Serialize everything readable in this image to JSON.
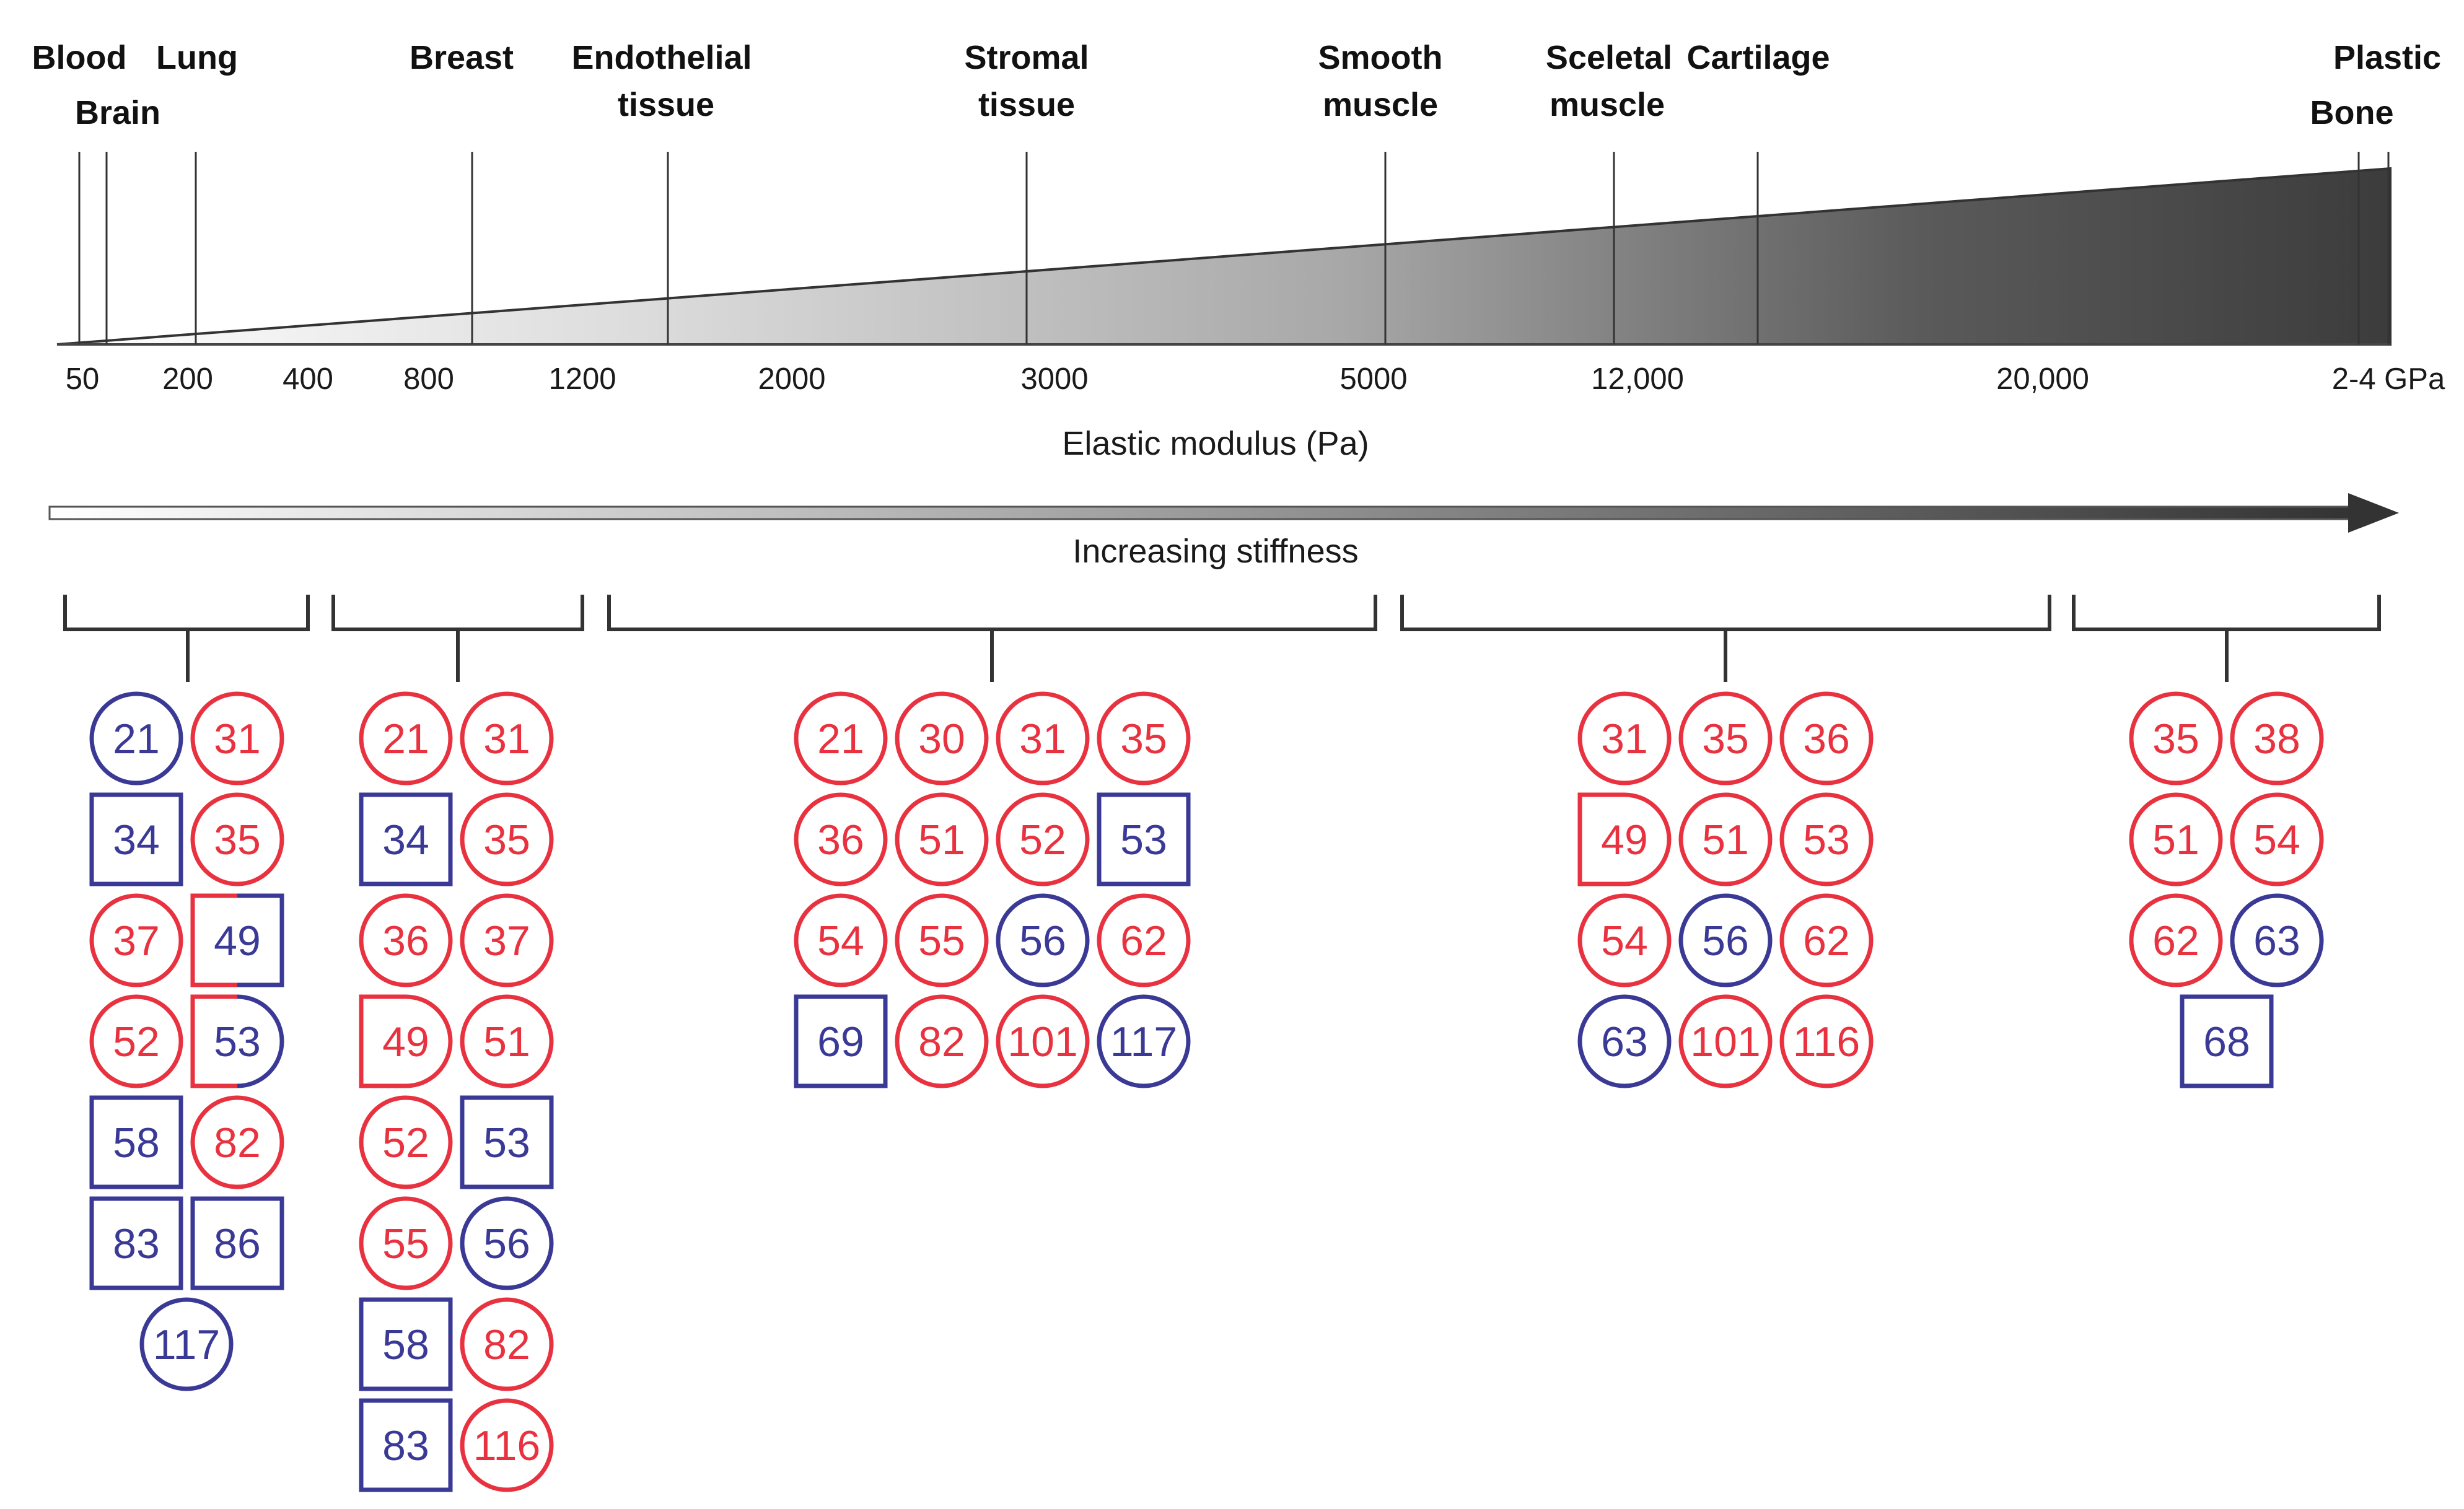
{
  "colors": {
    "red": "#e8323f",
    "blue": "#3a3a96",
    "line": "#333333",
    "wedge_dark": "#3c3c3c",
    "wedge_light": "#ffffff"
  },
  "tissue_labels": [
    {
      "text": "Blood"
    },
    {
      "text": "Brain"
    },
    {
      "text": "Lung"
    },
    {
      "text": "Breast"
    },
    {
      "text": "Endothelial"
    },
    {
      "text": "tissue"
    },
    {
      "text": "Stromal"
    },
    {
      "text": "tissue"
    },
    {
      "text": "Smooth"
    },
    {
      "text": "muscle"
    },
    {
      "text": "Sceletal"
    },
    {
      "text": "muscle"
    },
    {
      "text": "Cartilage"
    },
    {
      "text": "Plastic"
    },
    {
      "text": "Bone"
    }
  ],
  "axis": {
    "ticks": [
      "50",
      "200",
      "400",
      "800",
      "1200",
      "2000",
      "3000",
      "5000",
      "12,000",
      "20,000",
      "2-4 GPa"
    ],
    "title": "Elastic modulus (Pa)",
    "arrow_label": "Increasing stiffness"
  },
  "groups": [
    {
      "name": "group-very-soft",
      "refs": [
        {
          "n": "21",
          "shape": "circle",
          "color": "blue"
        },
        {
          "n": "31",
          "shape": "circle",
          "color": "red"
        },
        {
          "n": "34",
          "shape": "square",
          "color": "blue"
        },
        {
          "n": "35",
          "shape": "circle",
          "color": "red"
        },
        {
          "n": "37",
          "shape": "circle",
          "color": "red"
        },
        {
          "n": "49",
          "shape": "square",
          "color": "mixed"
        },
        {
          "n": "52",
          "shape": "circle",
          "color": "red"
        },
        {
          "n": "53",
          "shape": "square-circle",
          "color": "mixed"
        },
        {
          "n": "58",
          "shape": "square",
          "color": "blue"
        },
        {
          "n": "82",
          "shape": "circle",
          "color": "red"
        },
        {
          "n": "83",
          "shape": "square",
          "color": "blue"
        },
        {
          "n": "86",
          "shape": "square",
          "color": "blue"
        },
        {
          "n": "117",
          "shape": "circle",
          "color": "blue"
        }
      ]
    },
    {
      "name": "group-soft",
      "refs": [
        {
          "n": "21",
          "shape": "circle",
          "color": "red"
        },
        {
          "n": "31",
          "shape": "circle",
          "color": "red"
        },
        {
          "n": "34",
          "shape": "square",
          "color": "blue"
        },
        {
          "n": "35",
          "shape": "circle",
          "color": "red"
        },
        {
          "n": "36",
          "shape": "circle",
          "color": "red"
        },
        {
          "n": "37",
          "shape": "circle",
          "color": "red"
        },
        {
          "n": "49",
          "shape": "square-circle",
          "color": "red"
        },
        {
          "n": "51",
          "shape": "circle",
          "color": "red"
        },
        {
          "n": "52",
          "shape": "circle",
          "color": "red"
        },
        {
          "n": "53",
          "shape": "square",
          "color": "blue"
        },
        {
          "n": "55",
          "shape": "circle",
          "color": "red"
        },
        {
          "n": "56",
          "shape": "circle",
          "color": "blue"
        },
        {
          "n": "58",
          "shape": "square",
          "color": "blue"
        },
        {
          "n": "82",
          "shape": "circle",
          "color": "red"
        },
        {
          "n": "83",
          "shape": "square",
          "color": "blue"
        },
        {
          "n": "116",
          "shape": "circle",
          "color": "red"
        }
      ]
    },
    {
      "name": "group-intermediate",
      "refs": [
        {
          "n": "21",
          "shape": "circle",
          "color": "red"
        },
        {
          "n": "30",
          "shape": "circle",
          "color": "red"
        },
        {
          "n": "31",
          "shape": "circle",
          "color": "red"
        },
        {
          "n": "35",
          "shape": "circle",
          "color": "red"
        },
        {
          "n": "36",
          "shape": "circle",
          "color": "red"
        },
        {
          "n": "51",
          "shape": "circle",
          "color": "red"
        },
        {
          "n": "52",
          "shape": "circle",
          "color": "red"
        },
        {
          "n": "53",
          "shape": "square",
          "color": "blue"
        },
        {
          "n": "54",
          "shape": "circle",
          "color": "red"
        },
        {
          "n": "55",
          "shape": "circle",
          "color": "red"
        },
        {
          "n": "56",
          "shape": "circle",
          "color": "blue"
        },
        {
          "n": "62",
          "shape": "circle",
          "color": "red"
        },
        {
          "n": "69",
          "shape": "square",
          "color": "blue"
        },
        {
          "n": "82",
          "shape": "circle",
          "color": "red"
        },
        {
          "n": "101",
          "shape": "circle",
          "color": "red"
        },
        {
          "n": "117",
          "shape": "circle",
          "color": "blue"
        }
      ]
    },
    {
      "name": "group-stiff",
      "refs": [
        {
          "n": "31",
          "shape": "circle",
          "color": "red"
        },
        {
          "n": "35",
          "shape": "circle",
          "color": "red"
        },
        {
          "n": "36",
          "shape": "circle",
          "color": "red"
        },
        {
          "n": "49",
          "shape": "square-circle",
          "color": "red"
        },
        {
          "n": "51",
          "shape": "circle",
          "color": "red"
        },
        {
          "n": "53",
          "shape": "circle",
          "color": "red"
        },
        {
          "n": "54",
          "shape": "circle",
          "color": "red"
        },
        {
          "n": "56",
          "shape": "circle",
          "color": "blue"
        },
        {
          "n": "62",
          "shape": "circle",
          "color": "red"
        },
        {
          "n": "63",
          "shape": "circle",
          "color": "blue"
        },
        {
          "n": "101",
          "shape": "circle",
          "color": "red"
        },
        {
          "n": "116",
          "shape": "circle",
          "color": "red"
        }
      ]
    },
    {
      "name": "group-very-stiff",
      "refs": [
        {
          "n": "35",
          "shape": "circle",
          "color": "red"
        },
        {
          "n": "38",
          "shape": "circle",
          "color": "red"
        },
        {
          "n": "51",
          "shape": "circle",
          "color": "red"
        },
        {
          "n": "54",
          "shape": "circle",
          "color": "red"
        },
        {
          "n": "62",
          "shape": "circle",
          "color": "red"
        },
        {
          "n": "63",
          "shape": "circle",
          "color": "blue"
        },
        {
          "n": "68",
          "shape": "square",
          "color": "blue"
        }
      ]
    }
  ]
}
